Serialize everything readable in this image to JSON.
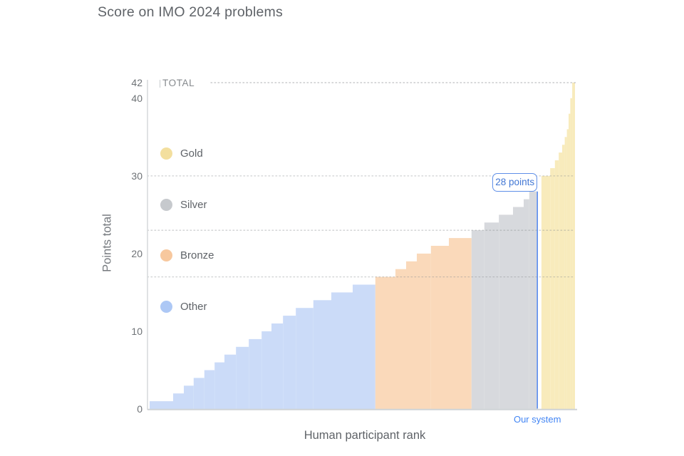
{
  "page": {
    "title": "Score on IMO 2024 problems"
  },
  "colors": {
    "accent_blue": "#4285f4",
    "callout_border_blue": "#5f8fe8",
    "title_gray": "#5f6368",
    "tick_gray": "#6e7276",
    "axis_line_gray": "#d6d9dc",
    "baseline_gray": "#cfd3d6",
    "dotted_line_gray": "#8a8e92"
  },
  "chart_data": {
    "type": "area",
    "subtype": "sorted-step-area (participant scores in ascending rank order)",
    "title": "Score on IMO 2024 problems",
    "xlabel": "Human participant rank",
    "ylabel": "Points total",
    "ylim": [
      0,
      42
    ],
    "y_ticks": [
      0,
      10,
      20,
      30,
      40,
      42
    ],
    "grid": "dotted horizontal lines at medal thresholds and total",
    "total_line": {
      "value": 42,
      "label": "TOTAL"
    },
    "threshold_lines": [
      {
        "zone": "Gold",
        "value": 30
      },
      {
        "zone": "Silver",
        "value": 23
      },
      {
        "zone": "Bronze",
        "value": 17
      }
    ],
    "legend": {
      "position": "inside-left",
      "items": [
        {
          "id": "gold",
          "label": "Gold",
          "color": "#f3df9e"
        },
        {
          "id": "silver",
          "label": "Silver",
          "color": "#c6c9cd"
        },
        {
          "id": "bronze",
          "label": "Bronze",
          "color": "#f7c89e"
        },
        {
          "id": "other",
          "label": "Other",
          "color": "#adc8f5"
        }
      ]
    },
    "zones": {
      "gold": {
        "min_score": 30,
        "fill": "#f8ebbc"
      },
      "silver": {
        "min_score": 23,
        "fill": "#d7d9dd"
      },
      "bronze": {
        "min_score": 17,
        "fill": "#fad9ba"
      },
      "other": {
        "min_score": 0,
        "fill": "#cbdbf8"
      }
    },
    "steps": [
      {
        "score": 1,
        "x0": 0.005,
        "x1": 0.06
      },
      {
        "score": 2,
        "x0": 0.06,
        "x1": 0.085
      },
      {
        "score": 3,
        "x0": 0.085,
        "x1": 0.108
      },
      {
        "score": 4,
        "x0": 0.108,
        "x1": 0.133
      },
      {
        "score": 5,
        "x0": 0.133,
        "x1": 0.157
      },
      {
        "score": 6,
        "x0": 0.157,
        "x1": 0.18
      },
      {
        "score": 7,
        "x0": 0.18,
        "x1": 0.207
      },
      {
        "score": 8,
        "x0": 0.207,
        "x1": 0.237
      },
      {
        "score": 9,
        "x0": 0.237,
        "x1": 0.267
      },
      {
        "score": 10,
        "x0": 0.267,
        "x1": 0.29
      },
      {
        "score": 11,
        "x0": 0.29,
        "x1": 0.317
      },
      {
        "score": 12,
        "x0": 0.317,
        "x1": 0.347
      },
      {
        "score": 13,
        "x0": 0.347,
        "x1": 0.388
      },
      {
        "score": 14,
        "x0": 0.388,
        "x1": 0.43
      },
      {
        "score": 15,
        "x0": 0.43,
        "x1": 0.48
      },
      {
        "score": 16,
        "x0": 0.48,
        "x1": 0.533
      },
      {
        "score": 17,
        "x0": 0.533,
        "x1": 0.58
      },
      {
        "score": 18,
        "x0": 0.58,
        "x1": 0.605
      },
      {
        "score": 19,
        "x0": 0.605,
        "x1": 0.63
      },
      {
        "score": 20,
        "x0": 0.63,
        "x1": 0.663
      },
      {
        "score": 21,
        "x0": 0.663,
        "x1": 0.705
      },
      {
        "score": 22,
        "x0": 0.705,
        "x1": 0.758
      },
      {
        "score": 23,
        "x0": 0.758,
        "x1": 0.788
      },
      {
        "score": 24,
        "x0": 0.788,
        "x1": 0.822
      },
      {
        "score": 25,
        "x0": 0.822,
        "x1": 0.855
      },
      {
        "score": 26,
        "x0": 0.855,
        "x1": 0.88
      },
      {
        "score": 27,
        "x0": 0.88,
        "x1": 0.893
      },
      {
        "score": 28,
        "x0": 0.893,
        "x1": 0.9115
      },
      {
        "score": 30,
        "x0": 0.9215,
        "x1": 0.942
      },
      {
        "score": 31,
        "x0": 0.942,
        "x1": 0.953
      },
      {
        "score": 32,
        "x0": 0.953,
        "x1": 0.962
      },
      {
        "score": 33,
        "x0": 0.962,
        "x1": 0.97
      },
      {
        "score": 34,
        "x0": 0.97,
        "x1": 0.976
      },
      {
        "score": 35,
        "x0": 0.976,
        "x1": 0.981
      },
      {
        "score": 36,
        "x0": 0.981,
        "x1": 0.985
      },
      {
        "score": 38,
        "x0": 0.985,
        "x1": 0.989
      },
      {
        "score": 40,
        "x0": 0.989,
        "x1": 0.9935
      },
      {
        "score": 42,
        "x0": 0.9935,
        "x1": 1.0
      }
    ],
    "marker": {
      "label": "28 points",
      "value": 28,
      "x": 0.912,
      "axis_label": "Our system",
      "color": "#4285f4"
    }
  }
}
